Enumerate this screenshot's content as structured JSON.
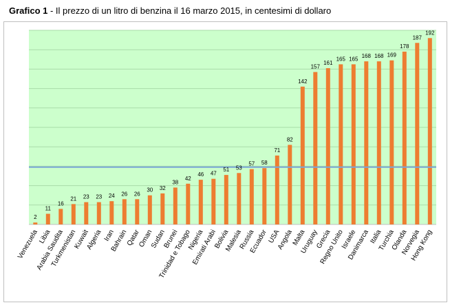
{
  "header": {
    "prefix": "Grafico 1",
    "text": " - Il prezzo di un litro di benzina il 16 marzo 2015, in centesimi di dollaro"
  },
  "chart_data": {
    "type": "bar",
    "title": "Grafico 1 - Il prezzo di un litro di benzina il 16 marzo 2015, in centesimi di dollaro",
    "xlabel": "",
    "ylabel": "",
    "ylim": [
      0,
      200
    ],
    "grid": true,
    "reference_line": 59,
    "colors": {
      "bar": "#ed7d31",
      "plot_bg": "#ccffcc",
      "grid": "#a9dca9",
      "ref_line": "#7aa7d6"
    },
    "categories": [
      "Venezuela",
      "Libia",
      "Arabia Saudita",
      "Turkmenistan",
      "Kuwait",
      "Algeria",
      "Iran",
      "Bahrain",
      "Qatar",
      "Oman",
      "Sudan",
      "Brunei",
      "Trinidad e Tobago",
      "Nigeria",
      "Emirati Arabi",
      "Bolivia",
      "Malesia",
      "Russia",
      "Ecuador",
      "USA",
      "Angola",
      "Malta",
      "Uruguay",
      "Grecia",
      "Regno Unito",
      "Israele",
      "Danimarca",
      "Italia",
      "Turchia",
      "Olanda",
      "Norvegia",
      "Hong Kong"
    ],
    "values": [
      2,
      11,
      16,
      21,
      23,
      23,
      24,
      26,
      26,
      30,
      32,
      38,
      42,
      46,
      47,
      51,
      53,
      57,
      58,
      71,
      82,
      142,
      157,
      161,
      165,
      165,
      168,
      168,
      169,
      178,
      187,
      192
    ]
  }
}
